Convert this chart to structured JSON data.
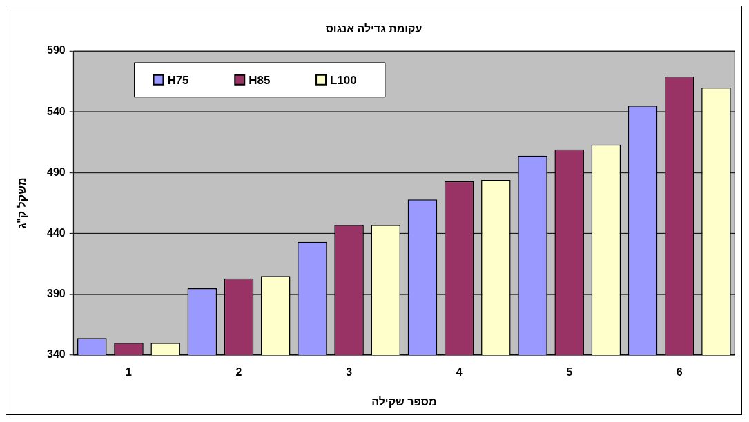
{
  "chart_data": {
    "type": "bar",
    "title": "עקומת גדילה אנגוס",
    "xlabel": "מספר שקילה",
    "ylabel": "משקל ק\"ג",
    "categories": [
      "1",
      "2",
      "3",
      "4",
      "5",
      "6"
    ],
    "series": [
      {
        "name": "H75",
        "color": "#9999ff",
        "values": [
          354,
          395,
          433,
          468,
          504,
          545
        ]
      },
      {
        "name": "H85",
        "color": "#993366",
        "values": [
          350,
          403,
          447,
          483,
          509,
          569
        ]
      },
      {
        "name": "L100",
        "color": "#ffffcc",
        "values": [
          350,
          405,
          447,
          484,
          513,
          560
        ]
      }
    ],
    "ylim": [
      340,
      590
    ],
    "yticks": [
      340,
      390,
      440,
      490,
      540,
      590
    ],
    "grid": "y",
    "legend": "top left"
  }
}
